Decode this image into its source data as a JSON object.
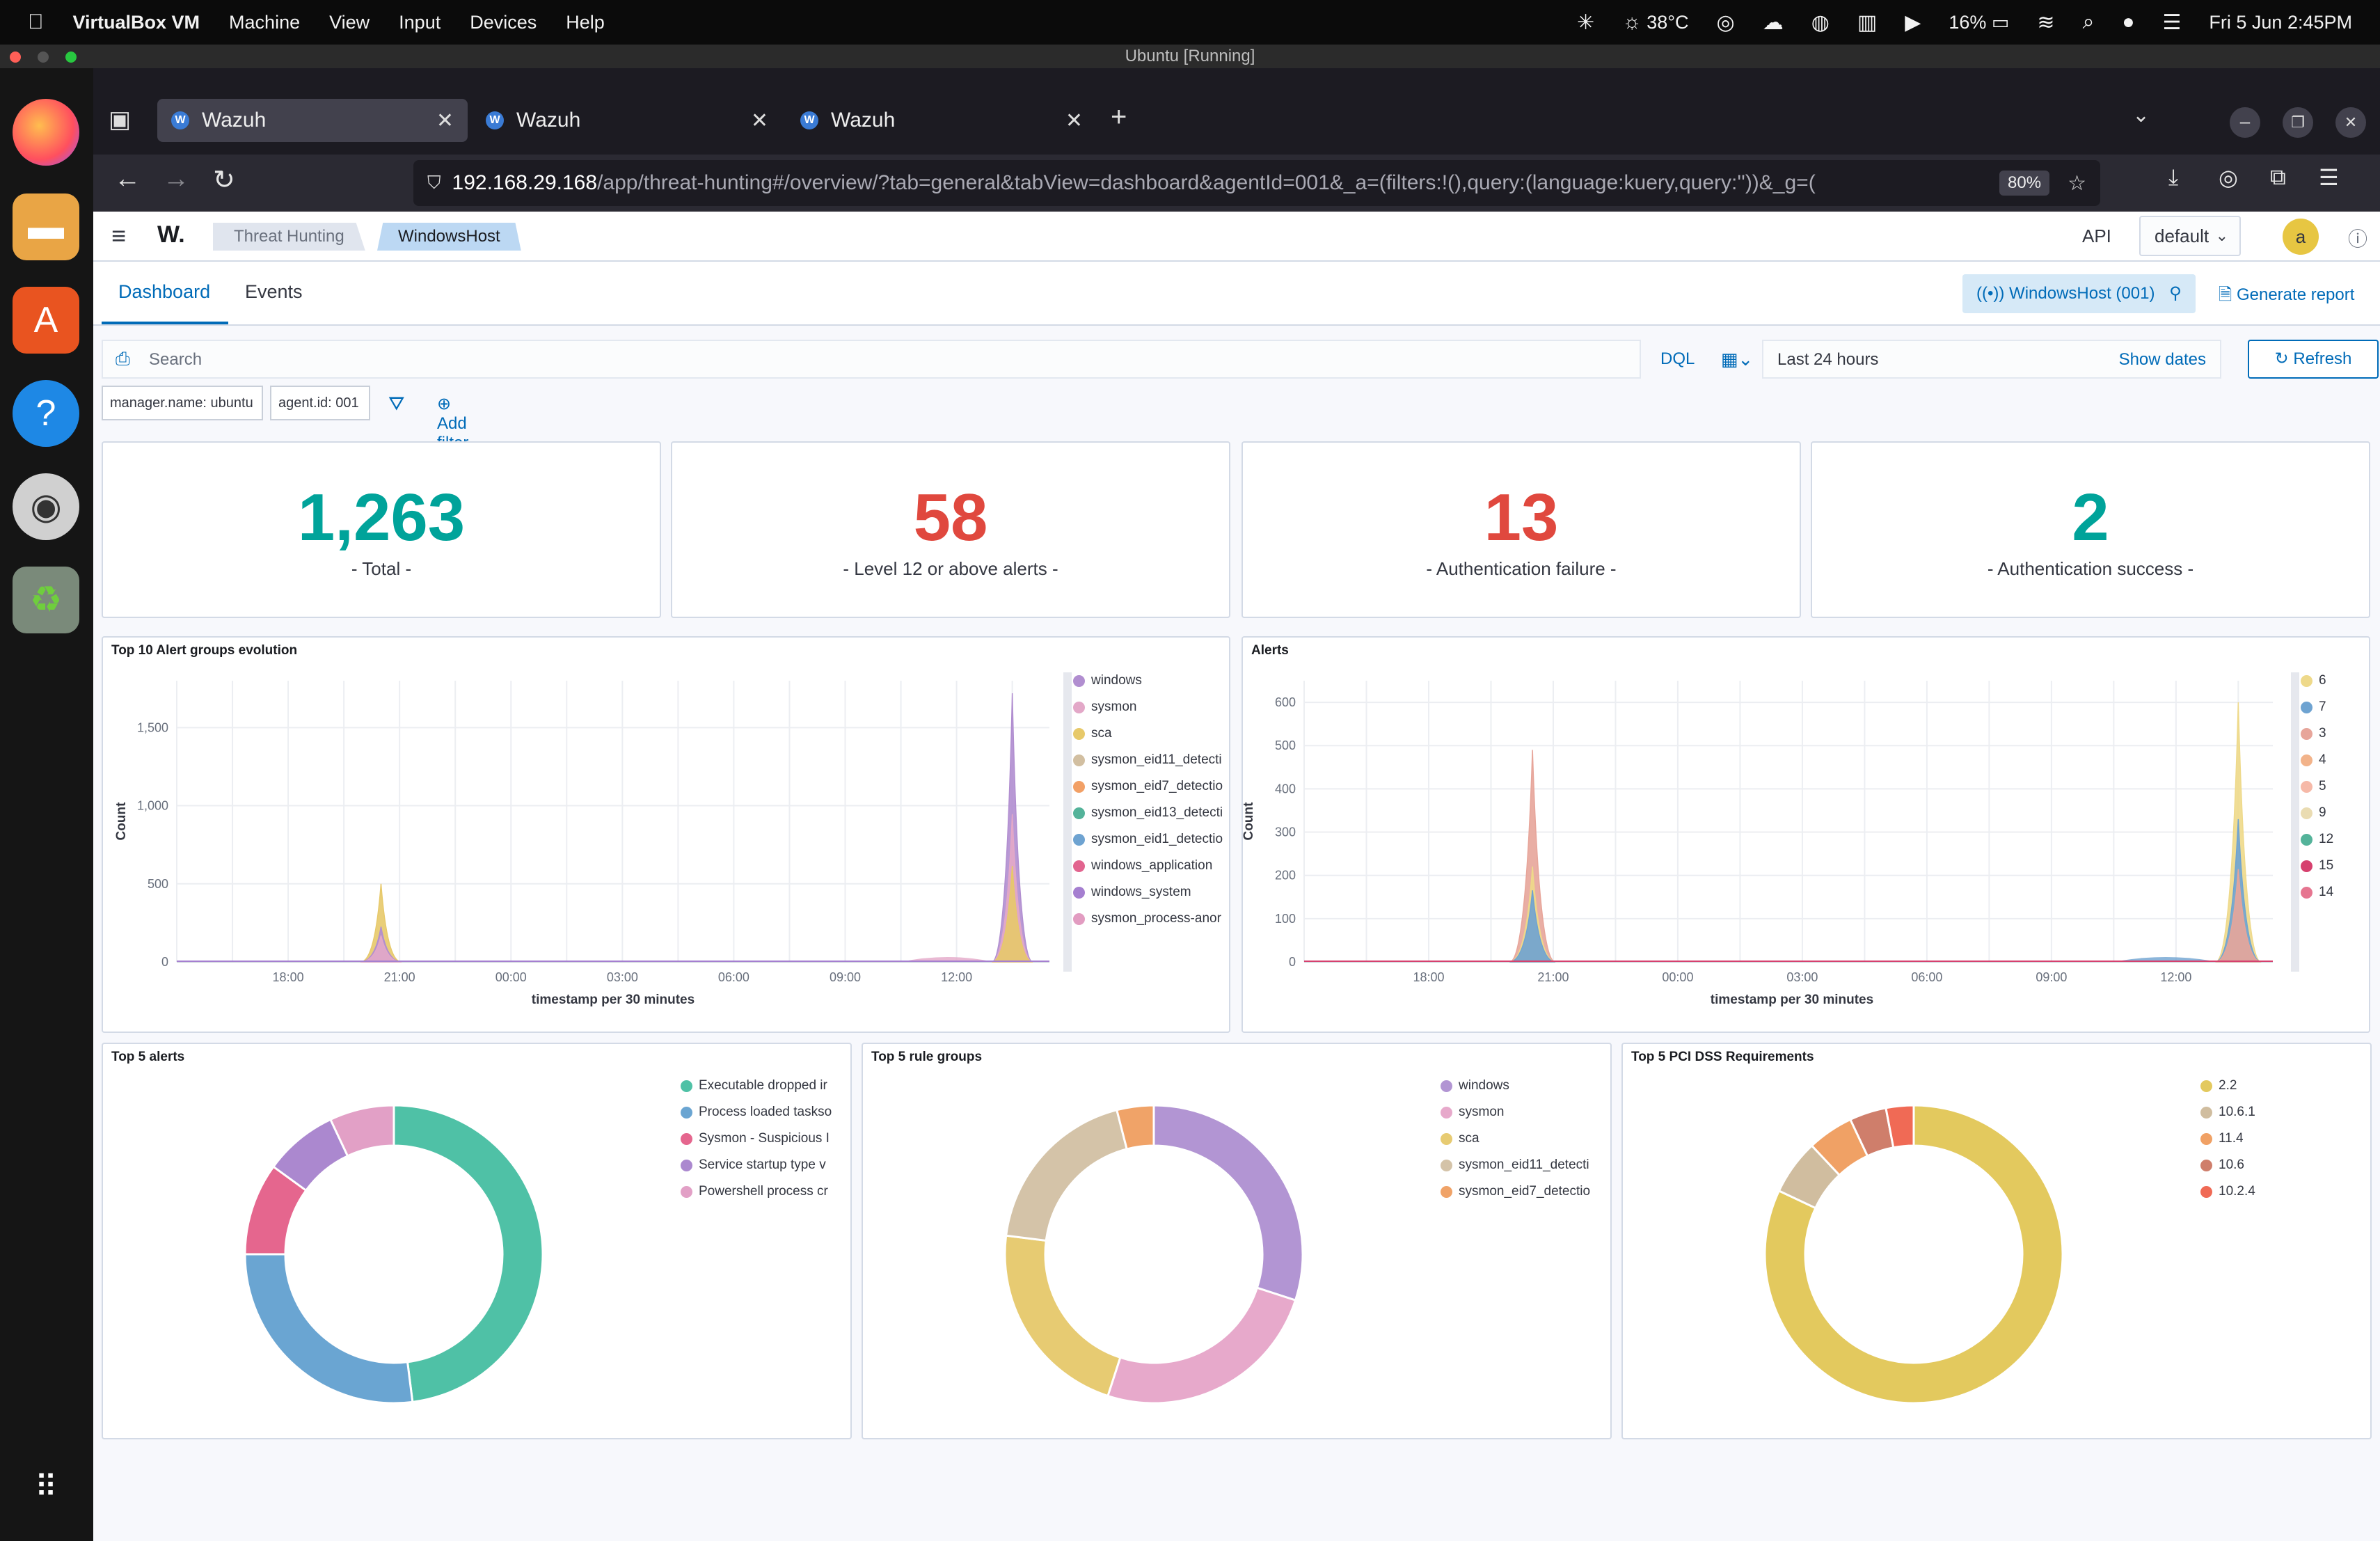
{
  "macos": {
    "app_name": "VirtualBox VM",
    "menu": [
      "Machine",
      "View",
      "Input",
      "Devices",
      "Help"
    ],
    "temperature": "38°C",
    "battery": "16%",
    "clock": "Fri 5 Jun  2:45PM"
  },
  "vm_title": "Ubuntu [Running]",
  "browser": {
    "tabs": [
      {
        "title": "Wazuh",
        "active": true
      },
      {
        "title": "Wazuh",
        "active": false
      },
      {
        "title": "Wazuh",
        "active": false
      }
    ],
    "url_host": "192.168.29.168",
    "url_path": "/app/threat-hunting#/overview/?tab=general&tabView=dashboard&agentId=001&_a=(filters:!(),query:(language:kuery,query:''))&_g=(",
    "zoom": "80%"
  },
  "app": {
    "breadcrumb": [
      "Threat Hunting",
      "WindowsHost"
    ],
    "api_label": "API",
    "api_value": "default",
    "avatar": "a",
    "tabs": [
      "Dashboard",
      "Events"
    ],
    "agent_pill": "WindowsHost (001)",
    "generate_report": "Generate report",
    "search_placeholder": "Search",
    "dql": "DQL",
    "date_range": "Last 24 hours",
    "show_dates": "Show dates",
    "refresh": "Refresh",
    "filters": [
      "manager.name: ubuntu",
      "agent.id: 001"
    ],
    "add_filter": "Add filter"
  },
  "stats": [
    {
      "value": "1,263",
      "label": "- Total -",
      "color": "#00a39a"
    },
    {
      "value": "58",
      "label": "- Level 12 or above alerts -",
      "color": "#e0483e"
    },
    {
      "value": "13",
      "label": "- Authentication failure -",
      "color": "#e0483e"
    },
    {
      "value": "2",
      "label": "- Authentication success -",
      "color": "#00a39a"
    }
  ],
  "chart_data": [
    {
      "type": "area",
      "title": "Top 10 Alert groups evolution",
      "xlabel": "timestamp per 30 minutes",
      "ylabel": "Count",
      "x_ticks": [
        "18:00",
        "21:00",
        "00:00",
        "03:00",
        "06:00",
        "09:00",
        "12:00"
      ],
      "y_ticks": [
        0,
        500,
        1000,
        1500
      ],
      "ylim": [
        0,
        1800
      ],
      "grid": true,
      "legend_position": "right",
      "series": [
        {
          "name": "windows",
          "color": "#b18ed0"
        },
        {
          "name": "sysmon",
          "color": "#e3a8c8"
        },
        {
          "name": "sca",
          "color": "#e7c96a"
        },
        {
          "name": "sysmon_eid11_detecti",
          "color": "#d2bfa1"
        },
        {
          "name": "sysmon_eid7_detectio",
          "color": "#f2a066"
        },
        {
          "name": "sysmon_eid13_detecti",
          "color": "#54b39a"
        },
        {
          "name": "sysmon_eid1_detectio",
          "color": "#6ea3d1"
        },
        {
          "name": "windows_application",
          "color": "#e2648f"
        },
        {
          "name": "windows_system",
          "color": "#a57fd0"
        },
        {
          "name": "sysmon_process-anor",
          "color": "#e29cc1"
        }
      ],
      "peaks": [
        {
          "time": "20:30",
          "value": 500
        },
        {
          "time": "13:30",
          "value": 1720
        }
      ]
    },
    {
      "type": "area",
      "title": "Alerts",
      "xlabel": "timestamp per 30 minutes",
      "ylabel": "Count",
      "x_ticks": [
        "18:00",
        "21:00",
        "00:00",
        "03:00",
        "06:00",
        "09:00",
        "12:00"
      ],
      "y_ticks": [
        0,
        100,
        200,
        300,
        400,
        500,
        600
      ],
      "ylim": [
        0,
        650
      ],
      "grid": true,
      "legend_position": "right",
      "series": [
        {
          "name": "6",
          "color": "#eed98a"
        },
        {
          "name": "7",
          "color": "#6ea3d1"
        },
        {
          "name": "3",
          "color": "#e7a59a"
        },
        {
          "name": "4",
          "color": "#f2b38a"
        },
        {
          "name": "5",
          "color": "#f6b9a8"
        },
        {
          "name": "9",
          "color": "#eadcb2"
        },
        {
          "name": "12",
          "color": "#54b39a"
        },
        {
          "name": "15",
          "color": "#d6406e"
        },
        {
          "name": "14",
          "color": "#e67590"
        }
      ],
      "peaks": [
        {
          "time": "20:30",
          "value": 490
        },
        {
          "time": "13:30",
          "value": 600
        }
      ]
    },
    {
      "type": "pie",
      "title": "Top 5 alerts",
      "legend_position": "right",
      "labels": [
        "Executable dropped ir",
        "Process loaded taskso",
        "Sysmon - Suspicious I",
        "Service startup type v",
        "Powershell process cr"
      ],
      "values": [
        48,
        27,
        10,
        8,
        7
      ],
      "colors": [
        "#4fc1a6",
        "#6aa5d2",
        "#e5668e",
        "#ab88cf",
        "#e2a0c6"
      ]
    },
    {
      "type": "pie",
      "title": "Top 5 rule groups",
      "legend_position": "right",
      "labels": [
        "windows",
        "sysmon",
        "sca",
        "sysmon_eid11_detecti",
        "sysmon_eid7_detectio"
      ],
      "values": [
        30,
        25,
        22,
        19,
        4
      ],
      "colors": [
        "#b295d3",
        "#e7a9cb",
        "#e7cb72",
        "#d4c3a8",
        "#f0a368"
      ]
    },
    {
      "type": "pie",
      "title": "Top 5 PCI DSS Requirements",
      "legend_position": "right",
      "labels": [
        "2.2",
        "10.6.1",
        "11.4",
        "10.6",
        "10.2.4"
      ],
      "values": [
        82,
        6,
        5,
        4,
        3
      ],
      "colors": [
        "#e3c95e",
        "#d0bd9f",
        "#f0a165",
        "#cf7e6b",
        "#f06a55"
      ]
    }
  ]
}
